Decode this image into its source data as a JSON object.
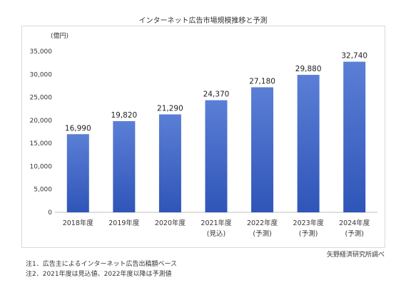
{
  "chart_data": {
    "type": "bar",
    "title": "インターネット広告市場規模推移と予測",
    "ylabel": "(億円)",
    "xlabel": "",
    "ylim": [
      0,
      35000
    ],
    "yticks": [
      "0",
      "5,000",
      "10,000",
      "15,000",
      "20,000",
      "25,000",
      "30,000",
      "35,000"
    ],
    "yticks_values": [
      0,
      5000,
      10000,
      15000,
      20000,
      25000,
      30000,
      35000
    ],
    "categories": [
      {
        "line1": "2018年度",
        "line2": ""
      },
      {
        "line1": "2019年度",
        "line2": ""
      },
      {
        "line1": "2020年度",
        "line2": ""
      },
      {
        "line1": "2021年度",
        "line2": "(見込)"
      },
      {
        "line1": "2022年度",
        "line2": "(予測)"
      },
      {
        "line1": "2023年度",
        "line2": "(予測)"
      },
      {
        "line1": "2024年度",
        "line2": "(予測)"
      }
    ],
    "values": [
      16990,
      19820,
      21290,
      24370,
      27180,
      29880,
      32740
    ],
    "data_labels": [
      "16,990",
      "19,820",
      "21,290",
      "24,370",
      "27,180",
      "29,880",
      "32,740"
    ],
    "grid": false,
    "bar_color_top": "#5b7fd6",
    "bar_color_bottom": "#2f55b8"
  },
  "source": "矢野経済研究所調べ",
  "notes": [
    "注1．広告主によるインターネット広告出稿額ベース",
    "注2．2021年度は見込値、2022年度以降は予測値"
  ]
}
